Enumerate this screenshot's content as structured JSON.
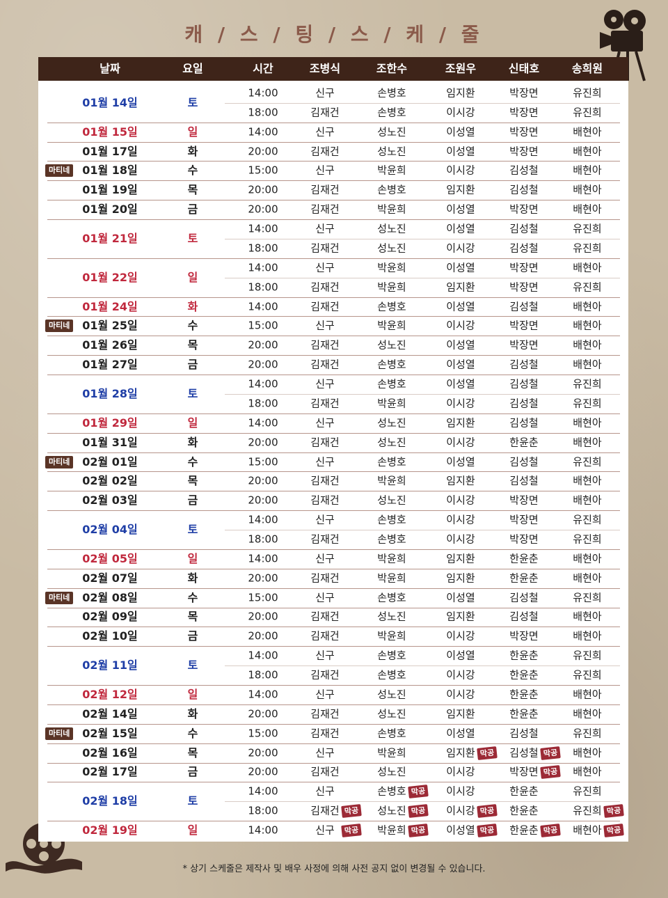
{
  "title": "캐 / 스 / 팅 / 스 / 케 / 줄",
  "headers": [
    "날짜",
    "요일",
    "시간",
    "조병식",
    "조한수",
    "조원우",
    "신태호",
    "송희원"
  ],
  "matinee_label": "마티네",
  "closing_label": "막공",
  "colors": {
    "blue": "#1f3ea6",
    "red": "#c0283d",
    "black": "#222222",
    "header_bg": "#3e2419",
    "closing_badge": "#9c2a36",
    "matinee_badge": "#5a3426"
  },
  "footnote": "* 상기 스케줄은 제작사 및 배우 사정에 의해 사전 공지 없이 변경될 수 있습니다.",
  "schedule": [
    {
      "date": "01월 14일",
      "day": "토",
      "color": "blue",
      "matinee": false,
      "shows": [
        {
          "time": "14:00",
          "cast": [
            "신구",
            "손병호",
            "임지환",
            "박장면",
            "유진희"
          ]
        },
        {
          "time": "18:00",
          "cast": [
            "김재건",
            "손병호",
            "이시강",
            "박장면",
            "유진희"
          ]
        }
      ]
    },
    {
      "date": "01월 15일",
      "day": "일",
      "color": "red",
      "matinee": false,
      "shows": [
        {
          "time": "14:00",
          "cast": [
            "신구",
            "성노진",
            "이성열",
            "박장면",
            "배현아"
          ]
        }
      ]
    },
    {
      "date": "01월 17일",
      "day": "화",
      "color": "black",
      "matinee": false,
      "shows": [
        {
          "time": "20:00",
          "cast": [
            "김재건",
            "성노진",
            "이성열",
            "박장면",
            "배현아"
          ]
        }
      ]
    },
    {
      "date": "01월 18일",
      "day": "수",
      "color": "black",
      "matinee": true,
      "shows": [
        {
          "time": "15:00",
          "cast": [
            "신구",
            "박윤희",
            "이시강",
            "김성철",
            "배현아"
          ]
        }
      ]
    },
    {
      "date": "01월 19일",
      "day": "목",
      "color": "black",
      "matinee": false,
      "shows": [
        {
          "time": "20:00",
          "cast": [
            "김재건",
            "손병호",
            "임지환",
            "김성철",
            "배현아"
          ]
        }
      ]
    },
    {
      "date": "01월 20일",
      "day": "금",
      "color": "black",
      "matinee": false,
      "shows": [
        {
          "time": "20:00",
          "cast": [
            "김재건",
            "박윤희",
            "이성열",
            "박장면",
            "배현아"
          ]
        }
      ]
    },
    {
      "date": "01월 21일",
      "day": "토",
      "color": "red",
      "matinee": false,
      "shows": [
        {
          "time": "14:00",
          "cast": [
            "신구",
            "성노진",
            "이성열",
            "김성철",
            "유진희"
          ]
        },
        {
          "time": "18:00",
          "cast": [
            "김재건",
            "성노진",
            "이시강",
            "김성철",
            "유진희"
          ]
        }
      ]
    },
    {
      "date": "01월 22일",
      "day": "일",
      "color": "red",
      "matinee": false,
      "shows": [
        {
          "time": "14:00",
          "cast": [
            "신구",
            "박윤희",
            "이성열",
            "박장면",
            "배현아"
          ]
        },
        {
          "time": "18:00",
          "cast": [
            "김재건",
            "박윤희",
            "임지환",
            "박장면",
            "유진희"
          ]
        }
      ]
    },
    {
      "date": "01월 24일",
      "day": "화",
      "color": "red",
      "matinee": false,
      "shows": [
        {
          "time": "14:00",
          "cast": [
            "김재건",
            "손병호",
            "이성열",
            "김성철",
            "배현아"
          ]
        }
      ]
    },
    {
      "date": "01월 25일",
      "day": "수",
      "color": "black",
      "matinee": true,
      "shows": [
        {
          "time": "15:00",
          "cast": [
            "신구",
            "박윤희",
            "이시강",
            "박장면",
            "배현아"
          ]
        }
      ]
    },
    {
      "date": "01월 26일",
      "day": "목",
      "color": "black",
      "matinee": false,
      "shows": [
        {
          "time": "20:00",
          "cast": [
            "김재건",
            "성노진",
            "이성열",
            "박장면",
            "배현아"
          ]
        }
      ]
    },
    {
      "date": "01월 27일",
      "day": "금",
      "color": "black",
      "matinee": false,
      "shows": [
        {
          "time": "20:00",
          "cast": [
            "김재건",
            "손병호",
            "이성열",
            "김성철",
            "배현아"
          ]
        }
      ]
    },
    {
      "date": "01월 28일",
      "day": "토",
      "color": "blue",
      "matinee": false,
      "shows": [
        {
          "time": "14:00",
          "cast": [
            "신구",
            "손병호",
            "이성열",
            "김성철",
            "유진희"
          ]
        },
        {
          "time": "18:00",
          "cast": [
            "김재건",
            "박윤희",
            "이시강",
            "김성철",
            "유진희"
          ]
        }
      ]
    },
    {
      "date": "01월 29일",
      "day": "일",
      "color": "red",
      "matinee": false,
      "shows": [
        {
          "time": "14:00",
          "cast": [
            "신구",
            "성노진",
            "임지환",
            "김성철",
            "배현아"
          ]
        }
      ]
    },
    {
      "date": "01월 31일",
      "day": "화",
      "color": "black",
      "matinee": false,
      "shows": [
        {
          "time": "20:00",
          "cast": [
            "김재건",
            "성노진",
            "이시강",
            "한윤춘",
            "배현아"
          ]
        }
      ]
    },
    {
      "date": "02월 01일",
      "day": "수",
      "color": "black",
      "matinee": true,
      "shows": [
        {
          "time": "15:00",
          "cast": [
            "신구",
            "손병호",
            "이성열",
            "김성철",
            "유진희"
          ]
        }
      ]
    },
    {
      "date": "02월 02일",
      "day": "목",
      "color": "black",
      "matinee": false,
      "shows": [
        {
          "time": "20:00",
          "cast": [
            "김재건",
            "박윤희",
            "임지환",
            "김성철",
            "배현아"
          ]
        }
      ]
    },
    {
      "date": "02월 03일",
      "day": "금",
      "color": "black",
      "matinee": false,
      "shows": [
        {
          "time": "20:00",
          "cast": [
            "김재건",
            "성노진",
            "이시강",
            "박장면",
            "배현아"
          ]
        }
      ]
    },
    {
      "date": "02월 04일",
      "day": "토",
      "color": "blue",
      "matinee": false,
      "shows": [
        {
          "time": "14:00",
          "cast": [
            "신구",
            "손병호",
            "이시강",
            "박장면",
            "유진희"
          ]
        },
        {
          "time": "18:00",
          "cast": [
            "김재건",
            "손병호",
            "이시강",
            "박장면",
            "유진희"
          ]
        }
      ]
    },
    {
      "date": "02월 05일",
      "day": "일",
      "color": "red",
      "matinee": false,
      "shows": [
        {
          "time": "14:00",
          "cast": [
            "신구",
            "박윤희",
            "임지환",
            "한윤춘",
            "배현아"
          ]
        }
      ]
    },
    {
      "date": "02월 07일",
      "day": "화",
      "color": "black",
      "matinee": false,
      "shows": [
        {
          "time": "20:00",
          "cast": [
            "김재건",
            "박윤희",
            "임지환",
            "한윤춘",
            "배현아"
          ]
        }
      ]
    },
    {
      "date": "02월 08일",
      "day": "수",
      "color": "black",
      "matinee": true,
      "shows": [
        {
          "time": "15:00",
          "cast": [
            "신구",
            "손병호",
            "이성열",
            "김성철",
            "유진희"
          ]
        }
      ]
    },
    {
      "date": "02월 09일",
      "day": "목",
      "color": "black",
      "matinee": false,
      "shows": [
        {
          "time": "20:00",
          "cast": [
            "김재건",
            "성노진",
            "임지환",
            "김성철",
            "배현아"
          ]
        }
      ]
    },
    {
      "date": "02월 10일",
      "day": "금",
      "color": "black",
      "matinee": false,
      "shows": [
        {
          "time": "20:00",
          "cast": [
            "김재건",
            "박윤희",
            "이시강",
            "박장면",
            "배현아"
          ]
        }
      ]
    },
    {
      "date": "02월 11일",
      "day": "토",
      "color": "blue",
      "matinee": false,
      "shows": [
        {
          "time": "14:00",
          "cast": [
            "신구",
            "손병호",
            "이성열",
            "한윤춘",
            "유진희"
          ]
        },
        {
          "time": "18:00",
          "cast": [
            "김재건",
            "손병호",
            "이시강",
            "한윤춘",
            "유진희"
          ]
        }
      ]
    },
    {
      "date": "02월 12일",
      "day": "일",
      "color": "red",
      "matinee": false,
      "shows": [
        {
          "time": "14:00",
          "cast": [
            "신구",
            "성노진",
            "이시강",
            "한윤춘",
            "배현아"
          ]
        }
      ]
    },
    {
      "date": "02월 14일",
      "day": "화",
      "color": "black",
      "matinee": false,
      "shows": [
        {
          "time": "20:00",
          "cast": [
            "김재건",
            "성노진",
            "임지환",
            "한윤춘",
            "배현아"
          ]
        }
      ]
    },
    {
      "date": "02월 15일",
      "day": "수",
      "color": "black",
      "matinee": true,
      "shows": [
        {
          "time": "15:00",
          "cast": [
            "김재건",
            "손병호",
            "이성열",
            "김성철",
            "유진희"
          ]
        }
      ]
    },
    {
      "date": "02월 16일",
      "day": "목",
      "color": "black",
      "matinee": false,
      "shows": [
        {
          "time": "20:00",
          "cast": [
            "신구",
            "박윤희",
            "임지환",
            "김성철",
            "배현아"
          ],
          "closing": [
            false,
            false,
            true,
            true,
            false
          ]
        }
      ]
    },
    {
      "date": "02월 17일",
      "day": "금",
      "color": "black",
      "matinee": false,
      "shows": [
        {
          "time": "20:00",
          "cast": [
            "김재건",
            "성노진",
            "이시강",
            "박장면",
            "배현아"
          ],
          "closing": [
            false,
            false,
            false,
            true,
            false
          ]
        }
      ]
    },
    {
      "date": "02월 18일",
      "day": "토",
      "color": "blue",
      "matinee": false,
      "shows": [
        {
          "time": "14:00",
          "cast": [
            "신구",
            "손병호",
            "이시강",
            "한윤춘",
            "유진희"
          ],
          "closing": [
            false,
            true,
            false,
            false,
            false
          ]
        },
        {
          "time": "18:00",
          "cast": [
            "김재건",
            "성노진",
            "이시강",
            "한윤춘",
            "유진희"
          ],
          "closing": [
            true,
            true,
            true,
            false,
            true
          ]
        }
      ]
    },
    {
      "date": "02월 19일",
      "day": "일",
      "color": "red",
      "matinee": false,
      "shows": [
        {
          "time": "14:00",
          "cast": [
            "신구",
            "박윤희",
            "이성열",
            "한윤춘",
            "배현아"
          ],
          "closing": [
            true,
            true,
            true,
            true,
            true
          ]
        }
      ]
    }
  ]
}
